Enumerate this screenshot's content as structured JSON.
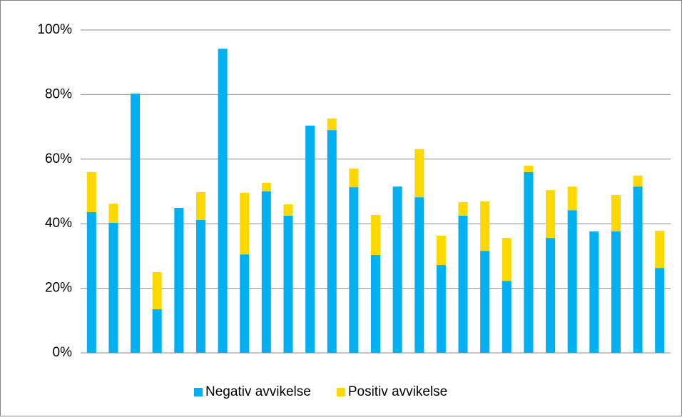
{
  "chart_data": {
    "type": "stacked_bar",
    "categories": [
      null,
      null,
      null,
      null,
      null,
      null,
      null,
      null,
      null,
      null,
      null,
      null,
      null,
      null,
      null,
      null,
      null,
      null,
      null,
      null,
      null,
      null,
      null,
      null,
      null,
      null,
      null
    ],
    "series": [
      {
        "name": "Negativ avvikelse",
        "color": "#00b0f0",
        "values": [
          43.6,
          40.3,
          80.3,
          13.5,
          44.9,
          41.2,
          94.2,
          30.5,
          50.0,
          42.5,
          70.4,
          69.0,
          51.3,
          30.3,
          51.5,
          48.2,
          27.2,
          42.5,
          31.6,
          22.3,
          56.0,
          35.6,
          44.2,
          37.6,
          37.6,
          51.5,
          26.3
        ]
      },
      {
        "name": "Positiv avvikelse",
        "color": "#ffd800",
        "values": [
          12.4,
          5.9,
          0,
          11.5,
          0,
          8.6,
          0,
          19.1,
          2.7,
          3.5,
          0,
          3.6,
          5.8,
          12.4,
          0,
          14.9,
          9.1,
          4.2,
          15.3,
          13.3,
          2.0,
          14.8,
          7.3,
          0,
          11.3,
          3.4,
          11.5
        ]
      }
    ],
    "ylim": [
      0,
      100
    ],
    "yticks": [
      {
        "value": 0,
        "label": "0%"
      },
      {
        "value": 20,
        "label": "20%"
      },
      {
        "value": 40,
        "label": "40%"
      },
      {
        "value": 60,
        "label": "60%"
      },
      {
        "value": 80,
        "label": "80%"
      },
      {
        "value": 100,
        "label": "100%"
      }
    ],
    "grid": true,
    "legend": "bottom"
  }
}
